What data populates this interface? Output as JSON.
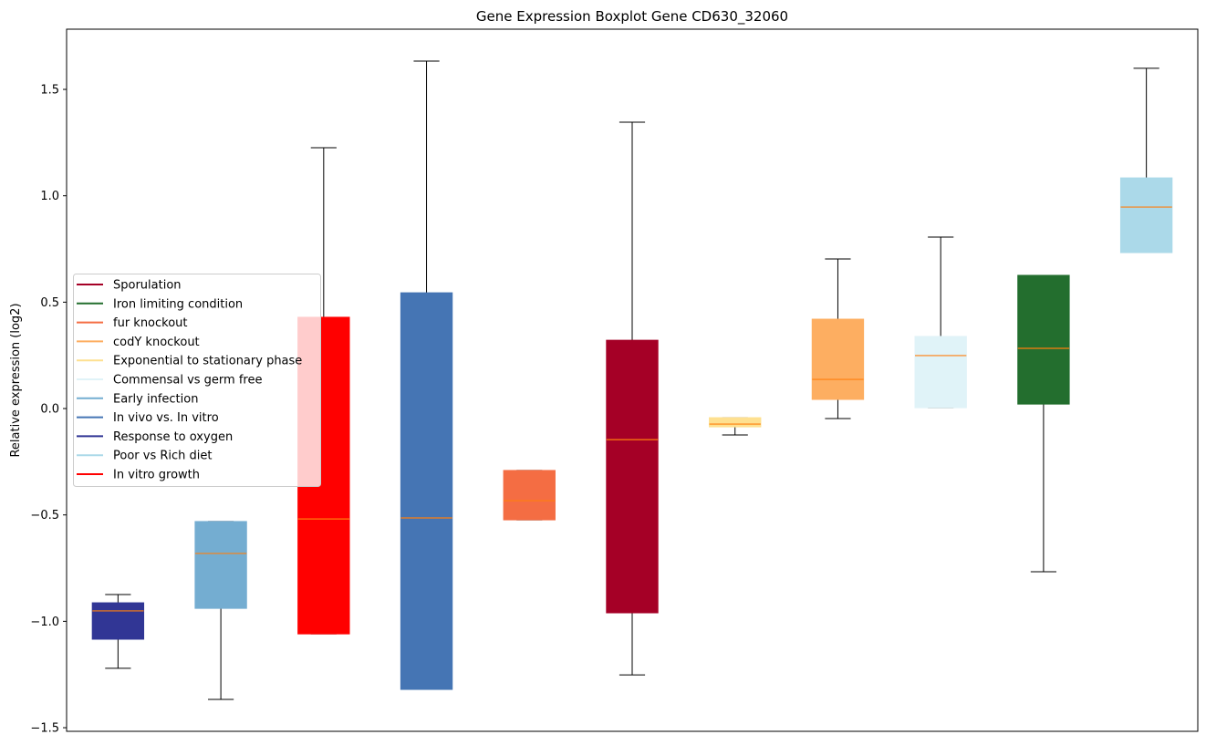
{
  "chart_data": {
    "type": "boxplot",
    "title": "Gene Expression Boxplot Gene CD630_32060",
    "xlabel": "",
    "ylabel": "Relative expression (log2)",
    "ylim": [
      -1.517,
      1.783
    ],
    "yticks": [
      -1.5,
      -1.0,
      -0.5,
      0.0,
      0.5,
      1.0,
      1.5
    ],
    "ytick_labels": [
      "−1.5",
      "−1.0",
      "−0.5",
      "0.0",
      "0.5",
      "1.0",
      "1.5"
    ],
    "grid": false,
    "legend_position": "center-left",
    "median_color": "#ff7f0e",
    "boxes": [
      {
        "name": "Response to oxygen",
        "color": "#313695",
        "whislo": -1.221,
        "q1": -1.084,
        "med": -0.951,
        "q3": -0.913,
        "whishi": -0.874
      },
      {
        "name": "Early infection",
        "color": "#74add1",
        "whislo": -1.367,
        "q1": -0.939,
        "med": -0.681,
        "q3": -0.531,
        "whishi": -0.531
      },
      {
        "name": "In vitro growth",
        "color": "#ff0000",
        "whislo": -1.059,
        "q1": -1.059,
        "med": -0.519,
        "q3": 0.429,
        "whishi": 1.226
      },
      {
        "name": "In vivo vs. In vitro",
        "color": "#4575b4",
        "whislo": -1.32,
        "q1": -1.32,
        "med": -0.514,
        "q3": 0.544,
        "whishi": 1.633
      },
      {
        "name": "fur knockout",
        "color": "#f46d43",
        "whislo": -0.523,
        "q1": -0.523,
        "med": -0.433,
        "q3": -0.291,
        "whishi": -0.291
      },
      {
        "name": "Sporulation",
        "color": "#a50026",
        "whislo": -1.252,
        "q1": -0.96,
        "med": -0.146,
        "q3": 0.321,
        "whishi": 1.346
      },
      {
        "name": "Exponential to stationary phase",
        "color": "#fee090",
        "whislo": -0.124,
        "q1": -0.086,
        "med": -0.073,
        "q3": -0.043,
        "whishi": -0.043
      },
      {
        "name": "codY knockout",
        "color": "#fdae61",
        "whislo": -0.047,
        "q1": 0.043,
        "med": 0.137,
        "q3": 0.42,
        "whishi": 0.703
      },
      {
        "name": "Commensal vs germ free",
        "color": "#e0f3f8",
        "whislo": 0.004,
        "q1": 0.004,
        "med": 0.249,
        "q3": 0.339,
        "whishi": 0.806
      },
      {
        "name": "Iron limiting condition",
        "color": "#236e2e",
        "whislo": -0.767,
        "q1": 0.021,
        "med": 0.283,
        "q3": 0.626,
        "whishi": 0.626
      },
      {
        "name": "Poor vs Rich diet",
        "color": "#abd9e9",
        "whislo": 0.733,
        "q1": 0.733,
        "med": 0.947,
        "q3": 1.084,
        "whishi": 1.599
      }
    ],
    "legend": [
      {
        "label": "Sporulation",
        "color": "#a50026"
      },
      {
        "label": "Iron limiting condition",
        "color": "#236e2e"
      },
      {
        "label": "fur knockout",
        "color": "#f46d43"
      },
      {
        "label": "codY knockout",
        "color": "#fdae61"
      },
      {
        "label": "Exponential to stationary phase",
        "color": "#fee090"
      },
      {
        "label": "Commensal vs germ free",
        "color": "#e0f3f8"
      },
      {
        "label": "Early infection",
        "color": "#74add1"
      },
      {
        "label": "In vivo vs. In vitro",
        "color": "#4575b4"
      },
      {
        "label": "Response to oxygen",
        "color": "#313695"
      },
      {
        "label": "Poor vs Rich diet",
        "color": "#abd9e9"
      },
      {
        "label": "In vitro growth",
        "color": "#ff0000"
      }
    ]
  }
}
